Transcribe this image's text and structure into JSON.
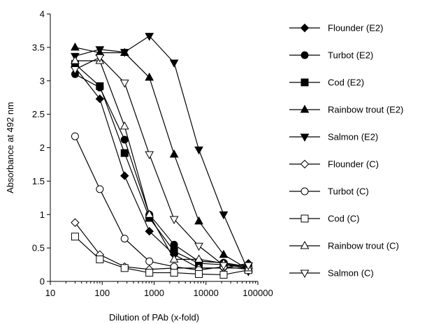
{
  "chart_data": {
    "type": "line",
    "title": "",
    "xlabel": "Dilution of PAb (x-fold)",
    "ylabel": "Absorbance at  492 nm",
    "xscale": "log",
    "xlim": [
      10,
      100000
    ],
    "ylim": [
      0,
      4
    ],
    "xticks": [
      10,
      100,
      1000,
      10000,
      100000
    ],
    "xtick_labels": [
      "10",
      "100",
      "1000",
      "10000",
      "100000"
    ],
    "yticks": [
      0,
      0.5,
      1,
      1.5,
      2,
      2.5,
      3,
      3.5,
      4
    ],
    "ytick_labels": [
      "0",
      "0.5",
      "1",
      "1.5",
      "2",
      "2.5",
      "3",
      "3.5",
      "4"
    ],
    "grid": false,
    "legend_position": "right",
    "x": [
      30,
      90,
      270,
      810,
      2430,
      7290,
      21870,
      65610
    ],
    "series": [
      {
        "name": "Flounder (E2)",
        "marker": "diamond",
        "filled": true,
        "values": [
          3.2,
          2.73,
          1.58,
          0.75,
          0.4,
          0.2,
          0.2,
          0.27
        ]
      },
      {
        "name": "Turbot (E2)",
        "marker": "circle",
        "filled": true,
        "values": [
          3.1,
          2.9,
          2.12,
          1.0,
          0.55,
          0.3,
          0.28,
          0.22
        ]
      },
      {
        "name": "Cod (E2)",
        "marker": "square",
        "filled": true,
        "values": [
          3.25,
          2.92,
          1.92,
          0.95,
          0.45,
          0.27,
          0.25,
          0.2
        ]
      },
      {
        "name": "Rainbow trout (E2)",
        "marker": "triangle-up",
        "filled": true,
        "values": [
          3.5,
          3.42,
          3.42,
          3.05,
          1.9,
          0.9,
          0.4,
          0.18
        ]
      },
      {
        "name": "Salmon (E2)",
        "marker": "triangle-down",
        "filled": true,
        "values": [
          3.37,
          3.47,
          3.43,
          3.67,
          3.27,
          1.97,
          1.0,
          0.15
        ]
      },
      {
        "name": "Flounder (C)",
        "marker": "diamond",
        "filled": false,
        "values": [
          0.88,
          0.4,
          0.22,
          0.18,
          0.2,
          0.2,
          0.2,
          0.2
        ]
      },
      {
        "name": "Turbot (C)",
        "marker": "circle",
        "filled": false,
        "values": [
          2.17,
          1.38,
          0.64,
          0.3,
          0.22,
          0.17,
          0.22,
          0.18
        ]
      },
      {
        "name": "Cod (C)",
        "marker": "square",
        "filled": false,
        "values": [
          0.67,
          0.33,
          0.2,
          0.13,
          0.13,
          0.11,
          0.1,
          0.17
        ]
      },
      {
        "name": "Rainbow trout (C)",
        "marker": "triangle-up",
        "filled": false,
        "values": [
          3.3,
          3.3,
          2.32,
          1.0,
          0.33,
          0.33,
          0.27,
          0.2
        ]
      },
      {
        "name": "Salmon (C)",
        "marker": "triangle-down",
        "filled": false,
        "values": [
          3.17,
          3.35,
          2.97,
          1.9,
          0.93,
          0.53,
          0.24,
          0.24
        ]
      }
    ]
  }
}
